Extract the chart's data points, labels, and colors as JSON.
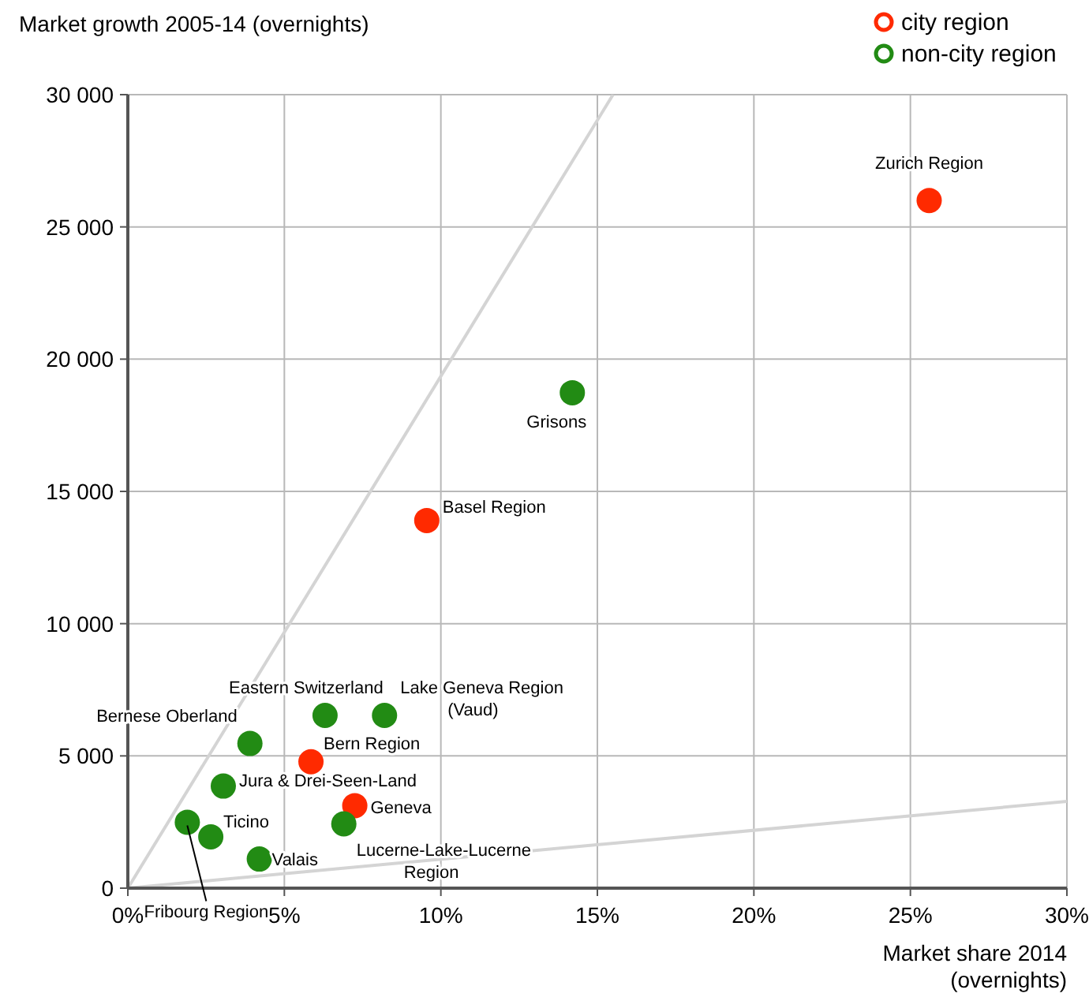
{
  "chart_data": {
    "type": "scatter",
    "ylabel": "Market growth 2005-14 (overnights)",
    "xlabel": "Market share 2014\n(overnights)",
    "xlim": [
      0,
      30
    ],
    "ylim": [
      0,
      30000
    ],
    "xticks": [
      {
        "value": 0,
        "label": "0%"
      },
      {
        "value": 5,
        "label": "5%"
      },
      {
        "value": 10,
        "label": "10%"
      },
      {
        "value": 15,
        "label": "15%"
      },
      {
        "value": 20,
        "label": "20%"
      },
      {
        "value": 25,
        "label": "25%"
      },
      {
        "value": 30,
        "label": "30%"
      }
    ],
    "yticks": [
      {
        "value": 0,
        "label": "0"
      },
      {
        "value": 5000,
        "label": "5 000"
      },
      {
        "value": 10000,
        "label": "10 000"
      },
      {
        "value": 15000,
        "label": "15 000"
      },
      {
        "value": 20000,
        "label": "20 000"
      },
      {
        "value": 25000,
        "label": "25 000"
      },
      {
        "value": 30000,
        "label": "30 000"
      }
    ],
    "grid": true,
    "legend": "top right",
    "marker": "circle",
    "series": [
      {
        "name": "city region",
        "color": "#ff2a00",
        "x": [
          25.6,
          9.55,
          5.85,
          7.25
        ],
        "values": [
          26000,
          13900,
          4780,
          3120
        ]
      },
      {
        "name": "non-city region",
        "color": "#228b14",
        "x": [
          14.2,
          6.3,
          8.2,
          3.9,
          3.05,
          1.9,
          2.65,
          6.9,
          4.2
        ],
        "values": [
          18730,
          6530,
          6530,
          5470,
          3860,
          2490,
          1940,
          2430,
          1100
        ]
      },
      {
        "type": "line",
        "marker": "none",
        "color": "#d4d4d4",
        "x": [
          0,
          15.5
        ],
        "values": [
          0,
          30000
        ]
      },
      {
        "type": "line",
        "marker": "none",
        "color": "#d4d4d4",
        "x": [
          0,
          30
        ],
        "values": [
          0,
          3280
        ]
      }
    ],
    "annotations": [
      {
        "text": "Zurich Region",
        "x": 25.6,
        "y": 26000
      },
      {
        "text": "Basel Region",
        "x": 9.55,
        "y": 13900
      },
      {
        "text": "Bern Region",
        "x": 5.85,
        "y": 4780
      },
      {
        "text": "Geneva",
        "x": 7.25,
        "y": 3120
      },
      {
        "text": "Grisons",
        "x": 14.2,
        "y": 18730
      },
      {
        "text": "Eastern Switzerland",
        "x": 6.3,
        "y": 6530
      },
      {
        "text": "Lake Geneva Region\n(Vaud)",
        "x": 8.2,
        "y": 6530
      },
      {
        "text": "Bernese Oberland",
        "x": 3.9,
        "y": 5470
      },
      {
        "text": "Jura & Drei-Seen-Land",
        "x": 3.05,
        "y": 3860
      },
      {
        "text": "Fribourg Region",
        "x": 1.9,
        "y": 2490
      },
      {
        "text": "Ticino",
        "x": 2.65,
        "y": 1940
      },
      {
        "text": "Lucerne-Lake-Lucerne\nRegion",
        "x": 6.9,
        "y": 2430
      },
      {
        "text": "Valais",
        "x": 4.2,
        "y": 1100
      }
    ]
  }
}
